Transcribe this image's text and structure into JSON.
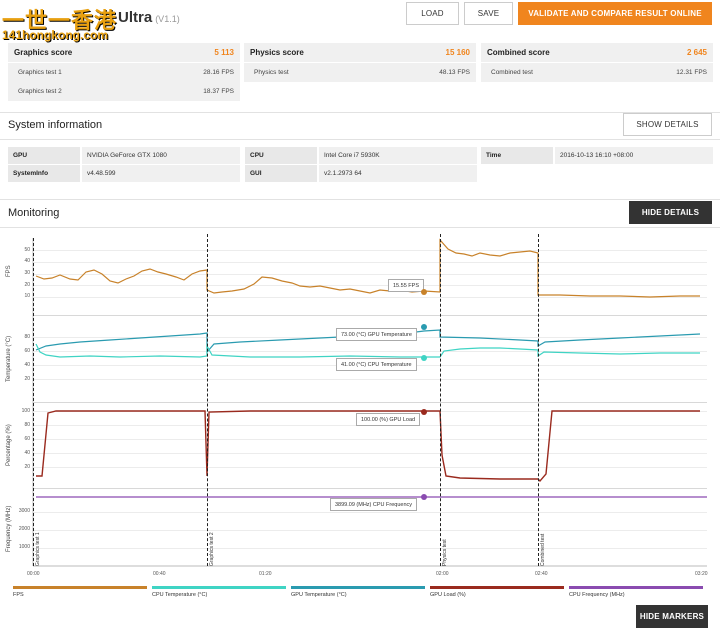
{
  "header": {
    "logo_top": "一世一香港",
    "logo_bottom": "141hongkong.com",
    "title": "Ultra",
    "version": "(V1.1)",
    "load_label": "LOAD",
    "save_label": "SAVE",
    "validate_label": "VALIDATE AND COMPARE RESULT ONLINE"
  },
  "scores": [
    {
      "title": "Graphics score",
      "value": "5 113",
      "rows": [
        {
          "label": "Graphics test 1",
          "value": "28.16 FPS"
        },
        {
          "label": "Graphics test 2",
          "value": "18.37 FPS"
        }
      ]
    },
    {
      "title": "Physics score",
      "value": "15 160",
      "rows": [
        {
          "label": "Physics test",
          "value": "48.13 FPS"
        }
      ]
    },
    {
      "title": "Combined score",
      "value": "2 645",
      "rows": [
        {
          "label": "Combined test",
          "value": "12.31 FPS"
        }
      ]
    }
  ],
  "system": {
    "title": "System information",
    "show_details_label": "SHOW DETAILS",
    "gpu_label": "GPU",
    "gpu_value": "NVIDIA GeForce GTX 1080",
    "sysinfo_label": "SystemInfo",
    "sysinfo_value": "v4.48.599",
    "cpu_label": "CPU",
    "cpu_value": "Intel Core i7 5930K",
    "gui_label": "GUI",
    "gui_value": "v2.1.2973 64",
    "time_label": "Time",
    "time_value": "2016-10-13 16:10 +08:00"
  },
  "monitoring": {
    "title": "Monitoring",
    "hide_details_label": "HIDE DETAILS",
    "hide_markers_label": "HIDE MARKERS",
    "axis_fps": "FPS",
    "axis_temp": "Temperature (°C)",
    "axis_pct": "Percentage (%)",
    "axis_freq": "Frequency (MHz)",
    "ticks_fps": [
      "50",
      "40",
      "30",
      "20",
      "10"
    ],
    "ticks_temp": [
      "80",
      "60",
      "40",
      "20"
    ],
    "ticks_pct": [
      "100",
      "80",
      "60",
      "40",
      "20"
    ],
    "ticks_freq": [
      "3000",
      "2000",
      "1000"
    ],
    "x_ticks": [
      "00:00",
      "00:40",
      "01:20",
      "02:00",
      "02:40",
      "03:20"
    ],
    "markers": [
      "Graphics test 1",
      "Graphics test 2",
      "Physics test",
      "Combined test"
    ],
    "callout_fps": "15.55 FPS",
    "callout_gpu_temp": "73.00 (°C) GPU Temperature",
    "callout_cpu_temp": "41.00 (°C) CPU Temperature",
    "callout_gpu_load": "100.00 (%) GPU Load",
    "callout_cpu_freq": "3899.09 (MHz) CPU Frequency",
    "legend": [
      "FPS",
      "CPU Temperature (°C)",
      "GPU Temperature (°C)",
      "GPU Load (%)",
      "CPU Frequency (MHz)"
    ],
    "colors": {
      "fps": "#c8822a",
      "cpu_temp": "#3fd4c4",
      "gpu_temp": "#2a9bb0",
      "gpu_load": "#9a2a1e",
      "cpu_freq": "#8a4bb0"
    }
  }
}
